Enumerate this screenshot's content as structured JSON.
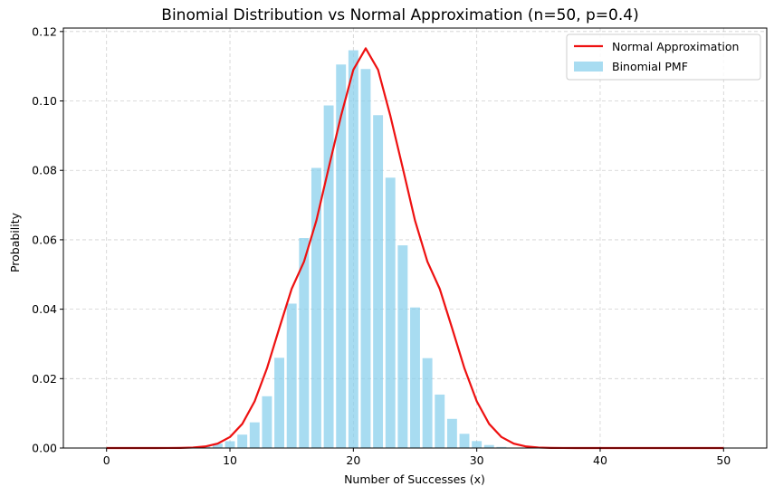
{
  "chart_data": {
    "type": "bar",
    "title": "Binomial Distribution vs Normal Approximation (n=50, p=0.4)",
    "xlabel": "Number of Successes (x)",
    "ylabel": "Probability",
    "xlim": [
      -3.5,
      53.5
    ],
    "ylim": [
      0,
      0.121
    ],
    "xticks": [
      0,
      10,
      20,
      30,
      40,
      50
    ],
    "yticks": [
      0.0,
      0.02,
      0.04,
      0.06,
      0.08,
      0.1,
      0.12
    ],
    "grid": true,
    "legend_position": "top-right",
    "x": [
      0,
      1,
      2,
      3,
      4,
      5,
      6,
      7,
      8,
      9,
      10,
      11,
      12,
      13,
      14,
      15,
      16,
      17,
      18,
      19,
      20,
      21,
      22,
      23,
      24,
      25,
      26,
      27,
      28,
      29,
      30,
      31,
      32,
      33,
      34,
      35,
      36,
      37,
      38,
      39,
      40,
      41,
      42,
      43,
      44,
      45,
      46,
      47,
      48,
      49,
      50
    ],
    "series": [
      {
        "name": "Binomial PMF",
        "kind": "bar",
        "color": "#87ceeb",
        "values": [
          0,
          0,
          0,
          0,
          0,
          1e-05,
          4e-05,
          0.00014,
          0.00045,
          0.00127,
          0.00196,
          0.00386,
          0.0074,
          0.01492,
          0.026,
          0.0416,
          0.0605,
          0.0807,
          0.0987,
          0.1105,
          0.1146,
          0.1092,
          0.0959,
          0.0779,
          0.0584,
          0.0405,
          0.0259,
          0.0154,
          0.0084,
          0.0041,
          0.002,
          0.00086,
          0.00032,
          0.00011,
          3e-05,
          1e-05,
          0,
          0,
          0,
          0,
          0,
          0,
          0,
          0,
          0,
          0,
          0,
          0,
          0,
          0,
          0
        ]
      },
      {
        "name": "Normal Approximation",
        "kind": "line",
        "color": "#ee1111",
        "values": [
          0,
          0,
          0,
          0,
          0,
          1e-05,
          4e-05,
          0.00014,
          0.00045,
          0.00127,
          0.00317,
          0.00696,
          0.01346,
          0.02297,
          0.03455,
          0.04586,
          0.0537,
          0.06549,
          0.08071,
          0.09568,
          0.109,
          0.11516,
          0.109,
          0.09568,
          0.08071,
          0.06549,
          0.0537,
          0.04586,
          0.03455,
          0.02297,
          0.01346,
          0.00696,
          0.00317,
          0.00127,
          0.00045,
          0.00014,
          4e-05,
          1e-05,
          0,
          0,
          0,
          0,
          0,
          0,
          0,
          0,
          0,
          0,
          0,
          0,
          0
        ]
      }
    ],
    "xtick_labels": [
      "0",
      "10",
      "20",
      "30",
      "40",
      "50"
    ],
    "ytick_labels": [
      "0.00",
      "0.02",
      "0.04",
      "0.06",
      "0.08",
      "0.10",
      "0.12"
    ]
  }
}
